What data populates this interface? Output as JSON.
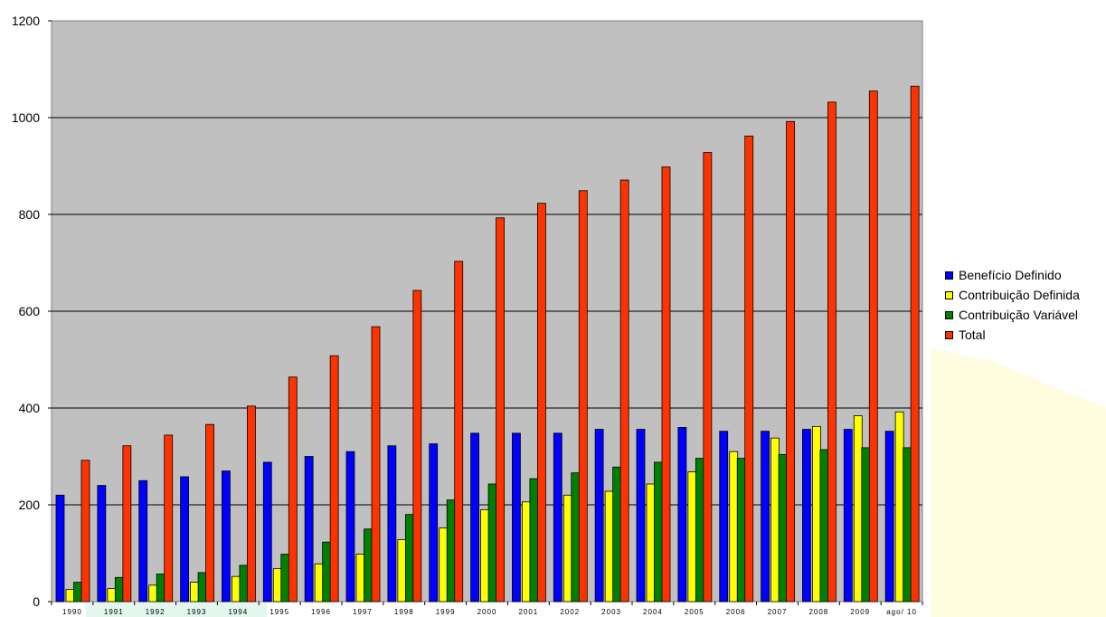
{
  "chart_data": {
    "type": "bar",
    "title": "",
    "xlabel": "",
    "ylabel": "",
    "ylim": [
      0,
      1200
    ],
    "yticks": [
      0,
      200,
      400,
      600,
      800,
      1000,
      1200
    ],
    "grid": true,
    "legend_position": "right",
    "categories": [
      "1990",
      "1991",
      "1992",
      "1993",
      "1994",
      "1995",
      "1996",
      "1997",
      "1998",
      "1999",
      "2000",
      "2001",
      "2002",
      "2003",
      "2004",
      "2005",
      "2006",
      "2007",
      "2008",
      "2009",
      "ago/ 10"
    ],
    "series": [
      {
        "name": "Benefício Definido",
        "color": "#0000ff",
        "values": [
          220,
          240,
          250,
          258,
          270,
          288,
          300,
          310,
          322,
          326,
          348,
          348,
          348,
          356,
          356,
          360,
          352,
          352,
          356,
          356,
          352
        ]
      },
      {
        "name": "Contribuição Definida",
        "color": "#ffff00",
        "values": [
          25,
          27,
          34,
          40,
          52,
          68,
          78,
          98,
          128,
          152,
          190,
          206,
          220,
          228,
          243,
          268,
          310,
          338,
          362,
          384,
          392
        ]
      },
      {
        "name": "Contribuição Variável",
        "color": "#008000",
        "values": [
          40,
          50,
          57,
          60,
          75,
          98,
          123,
          150,
          180,
          210,
          243,
          254,
          266,
          278,
          288,
          296,
          296,
          304,
          314,
          318,
          318
        ]
      },
      {
        "name": "Total",
        "color": "#ff3300",
        "values": [
          292,
          322,
          344,
          366,
          404,
          464,
          508,
          568,
          643,
          703,
          793,
          823,
          849,
          871,
          898,
          928,
          962,
          992,
          1032,
          1055,
          1065
        ]
      }
    ]
  }
}
